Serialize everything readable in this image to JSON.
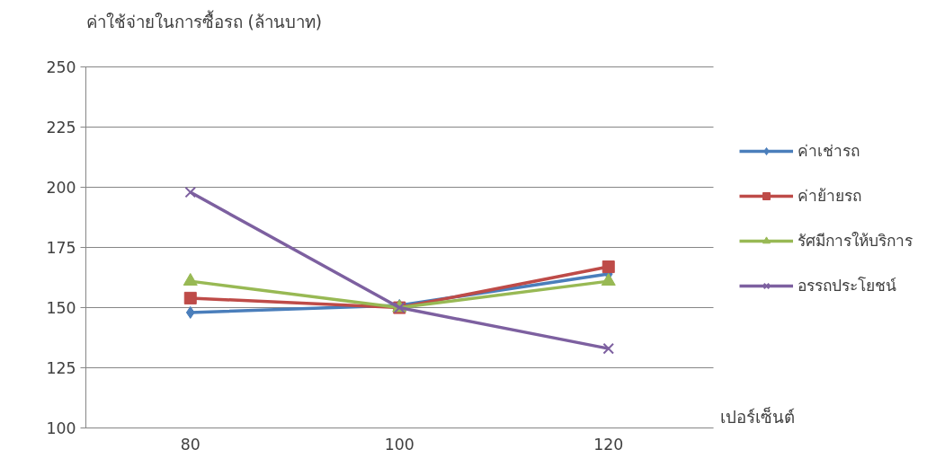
{
  "chart_data": {
    "type": "line",
    "ylabel": "ค่าใช้จ่ายในการซื้อรถ (ล้านบาท)",
    "xlabel": "เปอร์เซ็นต์",
    "categories": [
      "80",
      "100",
      "120"
    ],
    "ylim": [
      100,
      250
    ],
    "yticks": [
      100,
      125,
      150,
      175,
      200,
      225,
      250
    ],
    "grid": "y",
    "legend": "right",
    "series": [
      {
        "name": "ค่าเช่ารถ",
        "color": "#4a7ebb",
        "marker": "diamond",
        "values": [
          148,
          151,
          164
        ]
      },
      {
        "name": "ค่าย้ายรถ",
        "color": "#be4b48",
        "marker": "square",
        "values": [
          154,
          150,
          167
        ]
      },
      {
        "name": "รัศมีการให้บริการ",
        "color": "#98b954",
        "marker": "triangle",
        "values": [
          161,
          150,
          161
        ]
      },
      {
        "name": "อรรถประโยชน์",
        "color": "#7d60a0",
        "marker": "cross",
        "values": [
          198,
          150,
          133
        ]
      }
    ]
  }
}
